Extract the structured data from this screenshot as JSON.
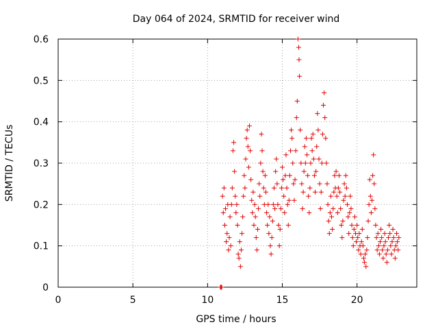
{
  "chart_data": {
    "type": "scatter",
    "title": "Day 064 of 2024, SRMTID for receiver wind",
    "xlabel": "GPS time / hours",
    "ylabel": "SRMTID / TECUs",
    "xlim": [
      0,
      24
    ],
    "ylim": [
      0,
      0.6
    ],
    "xticks": [
      "0",
      "5",
      "10",
      "15",
      "20"
    ],
    "xtick_values": [
      0,
      5,
      10,
      15,
      20
    ],
    "yticks": [
      "0",
      "0.1",
      "0.2",
      "0.3",
      "0.4",
      "0.5",
      "0.6"
    ],
    "ytick_values": [
      0,
      0.1,
      0.2,
      0.3,
      0.4,
      0.5,
      0.6
    ],
    "grid": true,
    "marker": "plus",
    "series_color": "#e00000",
    "series": [
      {
        "name": "SRMTID",
        "note": "sampled points estimated from plot",
        "points": [
          [
            10.85,
            0.0
          ],
          [
            10.9,
            0.0
          ],
          [
            10.95,
            0.0
          ],
          [
            11.0,
            0.22
          ],
          [
            11.05,
            0.18
          ],
          [
            11.1,
            0.24
          ],
          [
            11.15,
            0.15
          ],
          [
            11.2,
            0.19
          ],
          [
            11.25,
            0.11
          ],
          [
            11.3,
            0.13
          ],
          [
            11.35,
            0.2
          ],
          [
            11.4,
            0.09
          ],
          [
            11.45,
            0.12
          ],
          [
            11.5,
            0.17
          ],
          [
            11.55,
            0.1
          ],
          [
            11.6,
            0.2
          ],
          [
            11.65,
            0.24
          ],
          [
            11.7,
            0.33
          ],
          [
            11.75,
            0.35
          ],
          [
            11.8,
            0.28
          ],
          [
            11.85,
            0.22
          ],
          [
            11.9,
            0.18
          ],
          [
            11.95,
            0.2
          ],
          [
            12.0,
            0.15
          ],
          [
            12.05,
            0.08
          ],
          [
            12.1,
            0.07
          ],
          [
            12.15,
            0.11
          ],
          [
            12.2,
            0.05
          ],
          [
            12.25,
            0.09
          ],
          [
            12.3,
            0.13
          ],
          [
            12.35,
            0.17
          ],
          [
            12.4,
            0.22
          ],
          [
            12.45,
            0.27
          ],
          [
            12.5,
            0.24
          ],
          [
            12.55,
            0.31
          ],
          [
            12.6,
            0.36
          ],
          [
            12.65,
            0.38
          ],
          [
            12.7,
            0.34
          ],
          [
            12.75,
            0.29
          ],
          [
            12.8,
            0.39
          ],
          [
            12.85,
            0.33
          ],
          [
            12.9,
            0.26
          ],
          [
            12.95,
            0.21
          ],
          [
            13.0,
            0.18
          ],
          [
            13.05,
            0.23
          ],
          [
            13.1,
            0.15
          ],
          [
            13.15,
            0.2
          ],
          [
            13.2,
            0.17
          ],
          [
            13.25,
            0.12
          ],
          [
            13.3,
            0.09
          ],
          [
            13.35,
            0.14
          ],
          [
            13.4,
            0.19
          ],
          [
            13.45,
            0.25
          ],
          [
            13.5,
            0.22
          ],
          [
            13.55,
            0.3
          ],
          [
            13.6,
            0.37
          ],
          [
            13.65,
            0.33
          ],
          [
            13.7,
            0.28
          ],
          [
            13.75,
            0.24
          ],
          [
            13.8,
            0.2
          ],
          [
            13.85,
            0.27
          ],
          [
            13.9,
            0.23
          ],
          [
            13.95,
            0.18
          ],
          [
            14.0,
            0.15
          ],
          [
            14.05,
            0.2
          ],
          [
            14.1,
            0.13
          ],
          [
            14.15,
            0.17
          ],
          [
            14.2,
            0.1
          ],
          [
            14.25,
            0.08
          ],
          [
            14.3,
            0.12
          ],
          [
            14.35,
            0.16
          ],
          [
            14.4,
            0.2
          ],
          [
            14.45,
            0.24
          ],
          [
            14.5,
            0.19
          ],
          [
            14.55,
            0.28
          ],
          [
            14.6,
            0.31
          ],
          [
            14.65,
            0.25
          ],
          [
            14.7,
            0.2
          ],
          [
            14.75,
            0.15
          ],
          [
            14.8,
            0.1
          ],
          [
            14.85,
            0.14
          ],
          [
            14.9,
            0.19
          ],
          [
            14.95,
            0.24
          ],
          [
            15.0,
            0.29
          ],
          [
            15.05,
            0.26
          ],
          [
            15.1,
            0.22
          ],
          [
            15.15,
            0.18
          ],
          [
            15.2,
            0.27
          ],
          [
            15.25,
            0.32
          ],
          [
            15.3,
            0.24
          ],
          [
            15.35,
            0.2
          ],
          [
            15.4,
            0.15
          ],
          [
            15.45,
            0.21
          ],
          [
            15.5,
            0.27
          ],
          [
            15.55,
            0.33
          ],
          [
            15.6,
            0.38
          ],
          [
            15.65,
            0.36
          ],
          [
            15.7,
            0.3
          ],
          [
            15.75,
            0.25
          ],
          [
            15.8,
            0.21
          ],
          [
            15.85,
            0.26
          ],
          [
            15.9,
            0.33
          ],
          [
            15.95,
            0.41
          ],
          [
            16.0,
            0.45
          ],
          [
            16.05,
            0.6
          ],
          [
            16.1,
            0.58
          ],
          [
            16.12,
            0.55
          ],
          [
            16.15,
            0.51
          ],
          [
            16.2,
            0.38
          ],
          [
            16.25,
            0.3
          ],
          [
            16.3,
            0.25
          ],
          [
            16.35,
            0.19
          ],
          [
            16.4,
            0.23
          ],
          [
            16.45,
            0.28
          ],
          [
            16.5,
            0.34
          ],
          [
            16.55,
            0.3
          ],
          [
            16.6,
            0.36
          ],
          [
            16.65,
            0.32
          ],
          [
            16.7,
            0.27
          ],
          [
            16.75,
            0.22
          ],
          [
            16.8,
            0.18
          ],
          [
            16.85,
            0.24
          ],
          [
            16.9,
            0.3
          ],
          [
            16.95,
            0.36
          ],
          [
            17.0,
            0.33
          ],
          [
            17.05,
            0.37
          ],
          [
            17.1,
            0.31
          ],
          [
            17.15,
            0.27
          ],
          [
            17.2,
            0.23
          ],
          [
            17.25,
            0.28
          ],
          [
            17.3,
            0.34
          ],
          [
            17.35,
            0.42
          ],
          [
            17.4,
            0.38
          ],
          [
            17.45,
            0.31
          ],
          [
            17.5,
            0.25
          ],
          [
            17.55,
            0.19
          ],
          [
            17.6,
            0.23
          ],
          [
            17.65,
            0.3
          ],
          [
            17.7,
            0.37
          ],
          [
            17.75,
            0.44
          ],
          [
            17.8,
            0.47
          ],
          [
            17.85,
            0.41
          ],
          [
            17.9,
            0.36
          ],
          [
            17.95,
            0.3
          ],
          [
            18.0,
            0.25
          ],
          [
            18.05,
            0.2
          ],
          [
            18.1,
            0.16
          ],
          [
            18.15,
            0.13
          ],
          [
            18.2,
            0.18
          ],
          [
            18.25,
            0.22
          ],
          [
            18.3,
            0.17
          ],
          [
            18.35,
            0.14
          ],
          [
            18.4,
            0.19
          ],
          [
            18.45,
            0.23
          ],
          [
            18.5,
            0.27
          ],
          [
            18.55,
            0.24
          ],
          [
            18.6,
            0.28
          ],
          [
            18.65,
            0.22
          ],
          [
            18.7,
            0.18
          ],
          [
            18.75,
            0.24
          ],
          [
            18.8,
            0.27
          ],
          [
            18.85,
            0.23
          ],
          [
            18.9,
            0.19
          ],
          [
            18.95,
            0.15
          ],
          [
            19.0,
            0.12
          ],
          [
            19.05,
            0.16
          ],
          [
            19.1,
            0.21
          ],
          [
            19.15,
            0.25
          ],
          [
            19.2,
            0.22
          ],
          [
            19.25,
            0.27
          ],
          [
            19.3,
            0.24
          ],
          [
            19.35,
            0.2
          ],
          [
            19.4,
            0.17
          ],
          [
            19.45,
            0.13
          ],
          [
            19.5,
            0.18
          ],
          [
            19.55,
            0.22
          ],
          [
            19.6,
            0.19
          ],
          [
            19.65,
            0.15
          ],
          [
            19.7,
            0.12
          ],
          [
            19.75,
            0.1
          ],
          [
            19.8,
            0.14
          ],
          [
            19.85,
            0.17
          ],
          [
            19.9,
            0.13
          ],
          [
            19.95,
            0.11
          ],
          [
            20.0,
            0.15
          ],
          [
            20.05,
            0.12
          ],
          [
            20.1,
            0.09
          ],
          [
            20.15,
            0.13
          ],
          [
            20.2,
            0.1
          ],
          [
            20.25,
            0.08
          ],
          [
            20.3,
            0.11
          ],
          [
            20.35,
            0.14
          ],
          [
            20.4,
            0.1
          ],
          [
            20.45,
            0.07
          ],
          [
            20.5,
            0.06
          ],
          [
            20.55,
            0.08
          ],
          [
            20.6,
            0.05
          ],
          [
            20.65,
            0.09
          ],
          [
            20.7,
            0.12
          ],
          [
            20.75,
            0.16
          ],
          [
            20.8,
            0.2
          ],
          [
            20.85,
            0.26
          ],
          [
            20.9,
            0.22
          ],
          [
            20.95,
            0.18
          ],
          [
            21.0,
            0.21
          ],
          [
            21.05,
            0.27
          ],
          [
            21.1,
            0.32
          ],
          [
            21.15,
            0.25
          ],
          [
            21.2,
            0.19
          ],
          [
            21.25,
            0.15
          ],
          [
            21.3,
            0.12
          ],
          [
            21.35,
            0.09
          ],
          [
            21.4,
            0.13
          ],
          [
            21.45,
            0.1
          ],
          [
            21.5,
            0.08
          ],
          [
            21.55,
            0.11
          ],
          [
            21.6,
            0.14
          ],
          [
            21.65,
            0.12
          ],
          [
            21.7,
            0.09
          ],
          [
            21.75,
            0.07
          ],
          [
            21.8,
            0.1
          ],
          [
            21.85,
            0.13
          ],
          [
            21.9,
            0.11
          ],
          [
            21.95,
            0.08
          ],
          [
            22.0,
            0.06
          ],
          [
            22.05,
            0.09
          ],
          [
            22.1,
            0.12
          ],
          [
            22.15,
            0.15
          ],
          [
            22.2,
            0.13
          ],
          [
            22.25,
            0.1
          ],
          [
            22.3,
            0.08
          ],
          [
            22.35,
            0.11
          ],
          [
            22.4,
            0.14
          ],
          [
            22.45,
            0.12
          ],
          [
            22.5,
            0.09
          ],
          [
            22.55,
            0.07
          ],
          [
            22.6,
            0.1
          ],
          [
            22.65,
            0.13
          ],
          [
            22.7,
            0.11
          ],
          [
            22.75,
            0.09
          ],
          [
            22.8,
            0.12
          ]
        ]
      }
    ]
  }
}
